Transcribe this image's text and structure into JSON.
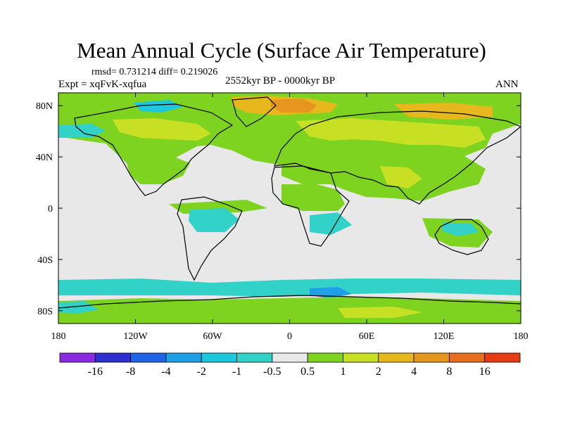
{
  "figure": {
    "title": "Mean Annual Cycle (Surface Air Temperature)",
    "stats": "rmsd= 0.731214 diff= 0.219026",
    "experiment": "Expt = xqFvK-xqfua",
    "period": "2552kyr BP - 0000kyr BP",
    "season": "ANN"
  },
  "map": {
    "lon_range": [
      -180,
      180
    ],
    "lat_range": [
      -90,
      90
    ],
    "lon_ticks": [
      {
        "value": -180,
        "label": "180"
      },
      {
        "value": -120,
        "label": "120W"
      },
      {
        "value": -60,
        "label": "60W"
      },
      {
        "value": 0,
        "label": "0"
      },
      {
        "value": 60,
        "label": "60E"
      },
      {
        "value": 120,
        "label": "120E"
      },
      {
        "value": 180,
        "label": "180"
      }
    ],
    "lat_ticks": [
      {
        "value": 80,
        "label": "80N"
      },
      {
        "value": 40,
        "label": "40N"
      },
      {
        "value": 0,
        "label": "0"
      },
      {
        "value": -40,
        "label": "40S"
      },
      {
        "value": -80,
        "label": "80S"
      }
    ],
    "background_color": "#e8e8e8"
  },
  "colorbar": {
    "colors": [
      "#8a2be2",
      "#2f2fd0",
      "#1e64e6",
      "#1ea0e6",
      "#1ec8dc",
      "#32d2c8",
      "#e8e8e8",
      "#7ed321",
      "#c8e024",
      "#e6b81e",
      "#e6961e",
      "#e66e1e",
      "#e63c14"
    ],
    "labels": [
      "-16",
      "-8",
      "-4",
      "-2",
      "-1",
      "-0.5",
      "0.5",
      "1",
      "2",
      "4",
      "8",
      "16"
    ]
  }
}
